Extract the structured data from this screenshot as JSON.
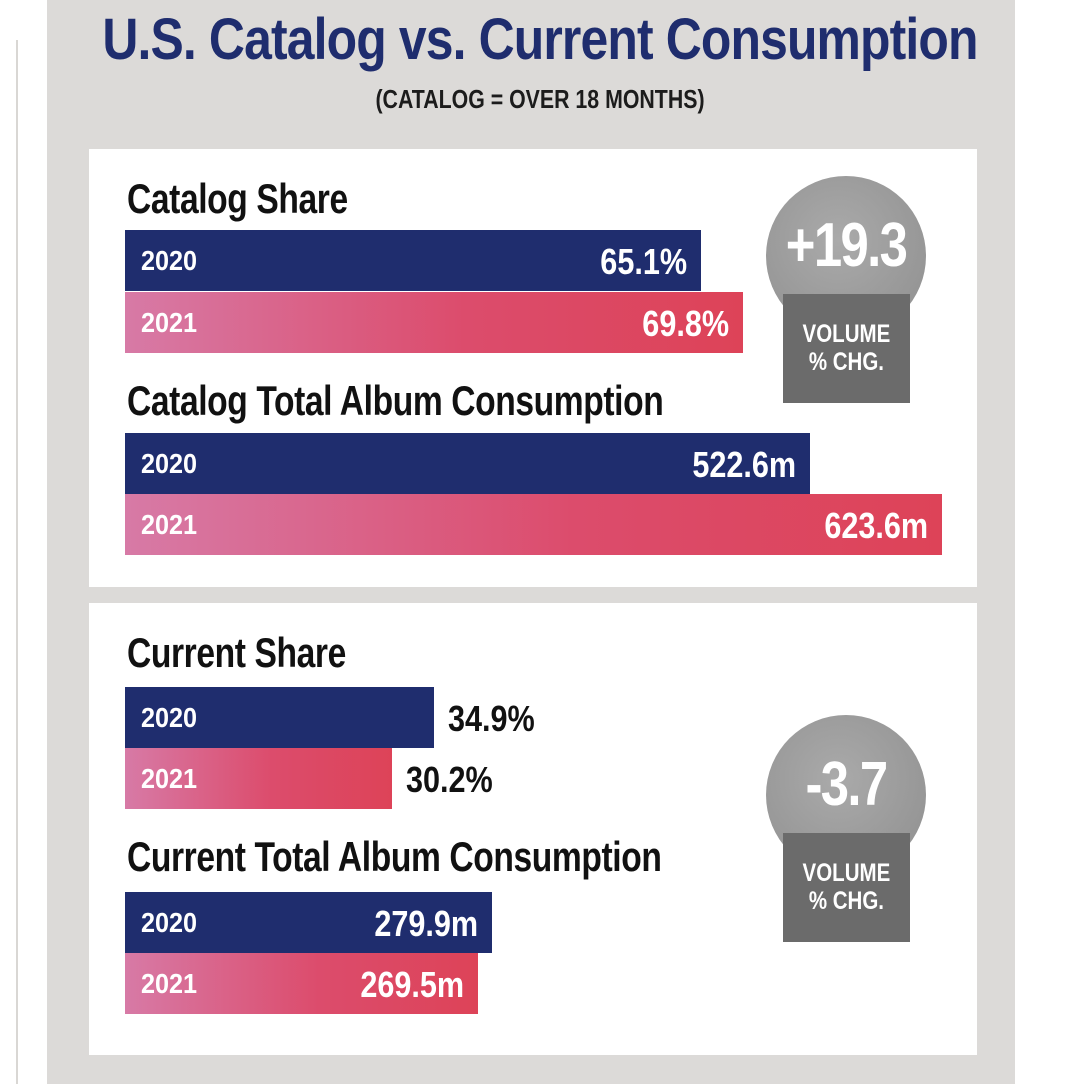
{
  "title": "U.S. Catalog vs. Current Consumption",
  "subtitle": "(CATALOG = OVER 18 MONTHS)",
  "colors": {
    "navy": "#1f2d6e",
    "pink": "#dd4358",
    "gray_badge": "#9b9b9b",
    "gray_box": "#6b6b6b"
  },
  "chart_data": [
    {
      "type": "bar",
      "title": "Catalog Share",
      "categories": [
        "2020",
        "2021"
      ],
      "values": [
        65.1,
        69.8
      ],
      "labels": [
        "65.1%",
        "69.8%"
      ],
      "unit": "%"
    },
    {
      "type": "bar",
      "title": "Catalog Total Album Consumption",
      "categories": [
        "2020",
        "2021"
      ],
      "values": [
        522.6,
        623.6
      ],
      "labels": [
        "522.6m",
        "623.6m"
      ],
      "unit": "m"
    },
    {
      "type": "bar",
      "title": "Current Share",
      "categories": [
        "2020",
        "2021"
      ],
      "values": [
        34.9,
        30.2
      ],
      "labels": [
        "34.9%",
        "30.2%"
      ],
      "unit": "%"
    },
    {
      "type": "bar",
      "title": "Current Total Album Consumption",
      "categories": [
        "2020",
        "2021"
      ],
      "values": [
        279.9,
        269.5
      ],
      "labels": [
        "279.9m",
        "269.5m"
      ],
      "unit": "m"
    }
  ],
  "badges": {
    "catalog": {
      "value": "+19.3",
      "label_line1": "VOLUME",
      "label_line2": "% CHG."
    },
    "current": {
      "value": "-3.7",
      "label_line1": "VOLUME",
      "label_line2": "% CHG."
    }
  }
}
